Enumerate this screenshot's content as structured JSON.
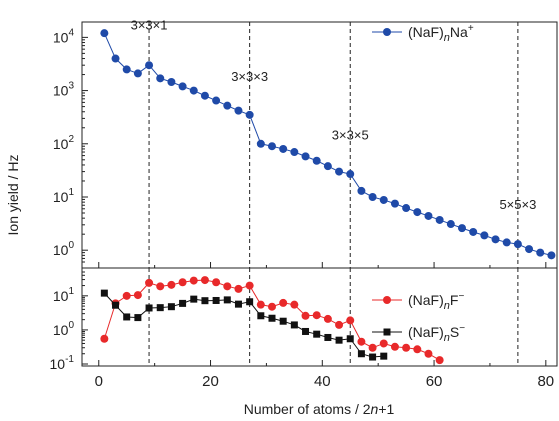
{
  "chart_data": [
    {
      "type": "scatter",
      "yscale": "log",
      "xlim": [
        -3,
        82
      ],
      "ylim": [
        0.6,
        15000
      ],
      "y_ticks": [
        {
          "value": 1,
          "label": "10",
          "exp": "0"
        },
        {
          "value": 10,
          "label": "10",
          "exp": "1"
        },
        {
          "value": 100,
          "label": "10",
          "exp": "2"
        },
        {
          "value": 1000,
          "label": "10",
          "exp": "3"
        },
        {
          "value": 10000,
          "label": "10",
          "exp": "4"
        }
      ],
      "series": [
        {
          "name": "(NaF)nNa+",
          "legend_parts": {
            "base": "(NaF)",
            "sub": "n",
            "after": "Na",
            "sup": "+"
          },
          "color": "#1f4aa8",
          "marker": "circle",
          "x": [
            1,
            3,
            5,
            7,
            9,
            11,
            13,
            15,
            17,
            19,
            21,
            23,
            25,
            27,
            29,
            31,
            33,
            35,
            37,
            39,
            41,
            43,
            45,
            47,
            49,
            51,
            53,
            55,
            57,
            59,
            61,
            63,
            65,
            67,
            69,
            71,
            73,
            75,
            77,
            79,
            81
          ],
          "y": [
            12000,
            4000,
            2500,
            2100,
            3000,
            1700,
            1450,
            1200,
            1000,
            800,
            650,
            520,
            420,
            350,
            100,
            90,
            80,
            70,
            58,
            48,
            38,
            30,
            27,
            13,
            10,
            8.8,
            7.5,
            6.2,
            5.2,
            4.4,
            3.7,
            3.1,
            2.6,
            2.2,
            1.9,
            1.6,
            1.4,
            1.3,
            1.05,
            0.9,
            0.8
          ]
        }
      ],
      "annotations": [
        {
          "text": "3×3×1",
          "x": 9,
          "y": 14000
        },
        {
          "text": "3×3×3",
          "x": 27,
          "y": 1500
        },
        {
          "text": "3×3×5",
          "x": 45,
          "y": 120
        },
        {
          "text": "5×5×3",
          "x": 75,
          "y": 6
        }
      ],
      "vlines": [
        9,
        27,
        45,
        75
      ]
    },
    {
      "type": "scatter",
      "yscale": "log",
      "xlim": [
        -3,
        82
      ],
      "ylim": [
        0.1,
        50
      ],
      "y_ticks": [
        {
          "value": 0.1,
          "label": "10",
          "exp": "-1"
        },
        {
          "value": 1,
          "label": "10",
          "exp": "0"
        },
        {
          "value": 10,
          "label": "10",
          "exp": "1"
        }
      ],
      "series": [
        {
          "name": "(NaF)nF-",
          "legend_parts": {
            "base": "(NaF)",
            "sub": "n",
            "after": "F",
            "sup": "−"
          },
          "color": "#e8292a",
          "marker": "circle",
          "x": [
            1,
            3,
            5,
            7,
            9,
            11,
            13,
            15,
            17,
            19,
            21,
            23,
            25,
            27,
            29,
            31,
            33,
            35,
            37,
            39,
            41,
            43,
            45,
            47,
            49,
            51,
            53,
            55,
            57,
            59,
            61
          ],
          "y": [
            0.55,
            6,
            10,
            10.5,
            24,
            19,
            21,
            25,
            28,
            29,
            25,
            19,
            16,
            20,
            5.5,
            4.8,
            6.2,
            5.5,
            2.6,
            2.7,
            2.1,
            1.4,
            1.9,
            0.45,
            0.3,
            0.4,
            0.32,
            0.3,
            0.27,
            0.2,
            0.13
          ]
        },
        {
          "name": "(NaF)nS-",
          "legend_parts": {
            "base": "(NaF)",
            "sub": "n",
            "after": "S",
            "sup": "−"
          },
          "color": "#111111",
          "marker": "square",
          "x": [
            1,
            3,
            5,
            7,
            9,
            11,
            13,
            15,
            17,
            19,
            21,
            23,
            25,
            27,
            29,
            31,
            33,
            35,
            37,
            39,
            41,
            43,
            45,
            47,
            49,
            51
          ],
          "y": [
            12,
            5.3,
            2.4,
            2.3,
            4.4,
            4.5,
            4.8,
            6,
            8,
            7.2,
            7.3,
            7.6,
            5.7,
            6.7,
            2.6,
            2.2,
            1.8,
            1.4,
            0.9,
            0.75,
            0.6,
            0.5,
            0.55,
            0.2,
            0.16,
            0.17
          ]
        }
      ],
      "vlines": [
        9,
        27,
        45,
        75
      ]
    }
  ],
  "axes": {
    "xlabel": "Number of atoms / 2n+1",
    "xlabel_parts": {
      "before": "Number of atoms / 2",
      "italic": "n",
      "after": "+1"
    },
    "ylabel": "Ion yield / Hz",
    "x_ticks": [
      0,
      20,
      40,
      60,
      80
    ]
  }
}
